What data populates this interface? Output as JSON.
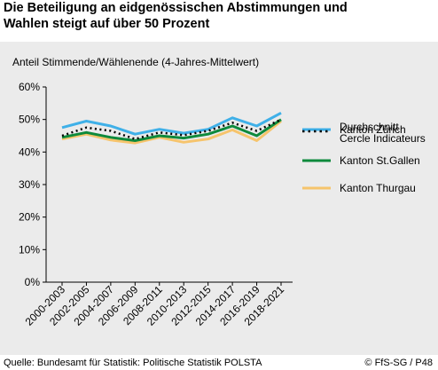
{
  "title": {
    "line1": "Die Beteiligung an eidgenössischen Abstimmungen und",
    "line2": "Wahlen steigt auf über 50 Prozent"
  },
  "footer": {
    "source": "Quelle: Bundesamt für Statistik: Politische Statistik POLSTA",
    "credit": "© FfS-SG / P48"
  },
  "colors": {
    "background": "#ebebeb",
    "zuerich": "#3fb0e8",
    "cercle": "#000000",
    "stgallen": "#0e8a3c",
    "thurgau": "#f6c46c"
  },
  "chart_data": {
    "type": "line",
    "ylabel": "Anteil Stimmende/Wählenende  (4-Jahres-Mittelwert)",
    "ylim": [
      0,
      60
    ],
    "yticks": [
      "0%",
      "10%",
      "20%",
      "30%",
      "40%",
      "50%",
      "60%"
    ],
    "ytick_values": [
      0,
      10,
      20,
      30,
      40,
      50,
      60
    ],
    "grid": false,
    "legend_placement": "right",
    "categories": [
      "2000-2003",
      "2002-2005",
      "2004-2007",
      "2006-2009",
      "2008-2011",
      "2010-2013",
      "2012-2015",
      "2014-2017",
      "2016-2019",
      "2018-2021"
    ],
    "series": [
      {
        "name": "Kanton Zürich",
        "style": "solid",
        "color": "#3fb0e8",
        "values": [
          47.5,
          49.5,
          48,
          45.5,
          47,
          45.8,
          47,
          50.5,
          48,
          52
        ]
      },
      {
        "name": "Durchschnitt Cercle Indicateurs",
        "label_lines": [
          "Durchschnitt",
          "Cercle Indicateurs"
        ],
        "style": "dotted",
        "color": "#000000",
        "values": [
          45,
          47.5,
          46.5,
          44,
          46,
          45.2,
          46.5,
          49,
          46.5,
          50
        ]
      },
      {
        "name": "Kanton St.Gallen",
        "style": "solid",
        "color": "#0e8a3c",
        "values": [
          44.5,
          46,
          44.5,
          43.5,
          45,
          44.3,
          45.5,
          48,
          45,
          50
        ]
      },
      {
        "name": "Kanton Thurgau",
        "style": "solid",
        "color": "#f6c46c",
        "values": [
          44,
          45.5,
          43.7,
          42.8,
          44.5,
          43,
          44,
          46.8,
          43.5,
          49.5
        ]
      }
    ]
  }
}
